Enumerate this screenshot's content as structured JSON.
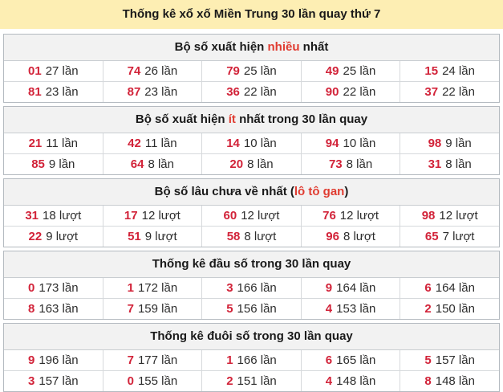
{
  "title": "Thống kê xổ xố Miền Trung 30 lần quay thứ 7",
  "colors": {
    "title_bar_bg": "#fdeeb3",
    "section_header_bg": "#f2f2f2",
    "accent_red": "#e03c31",
    "number_red": "#d22339",
    "border_gray": "#b4bac0",
    "text_dark": "#2d2d2d"
  },
  "sections": [
    {
      "header_parts": [
        {
          "text": "Bộ số xuất hiện ",
          "accent": false
        },
        {
          "text": "nhiều",
          "accent": true
        },
        {
          "text": " nhất",
          "accent": false
        }
      ],
      "rows": [
        [
          {
            "num": "01",
            "count": "27 lần"
          },
          {
            "num": "74",
            "count": "26 lần"
          },
          {
            "num": "79",
            "count": "25 lần"
          },
          {
            "num": "49",
            "count": "25 lần"
          },
          {
            "num": "15",
            "count": "24 lần"
          }
        ],
        [
          {
            "num": "81",
            "count": "23 lần"
          },
          {
            "num": "87",
            "count": "23 lần"
          },
          {
            "num": "36",
            "count": "22 lần"
          },
          {
            "num": "90",
            "count": "22 lần"
          },
          {
            "num": "37",
            "count": "22 lần"
          }
        ]
      ]
    },
    {
      "header_parts": [
        {
          "text": "Bộ số xuất hiện ",
          "accent": false
        },
        {
          "text": "ít",
          "accent": true
        },
        {
          "text": " nhất trong 30 lần quay",
          "accent": false
        }
      ],
      "rows": [
        [
          {
            "num": "21",
            "count": "11 lần"
          },
          {
            "num": "42",
            "count": "11 lần"
          },
          {
            "num": "14",
            "count": "10 lần"
          },
          {
            "num": "94",
            "count": "10 lần"
          },
          {
            "num": "98",
            "count": "9 lần"
          }
        ],
        [
          {
            "num": "85",
            "count": "9 lần"
          },
          {
            "num": "64",
            "count": "8 lần"
          },
          {
            "num": "20",
            "count": "8 lần"
          },
          {
            "num": "73",
            "count": "8 lần"
          },
          {
            "num": "31",
            "count": "8 lần"
          }
        ]
      ]
    },
    {
      "header_parts": [
        {
          "text": "Bộ số lâu chưa về nhất (",
          "accent": false
        },
        {
          "text": "lô tô gan",
          "accent": true
        },
        {
          "text": ")",
          "accent": false
        }
      ],
      "rows": [
        [
          {
            "num": "31",
            "count": "18 lượt"
          },
          {
            "num": "17",
            "count": "12 lượt"
          },
          {
            "num": "60",
            "count": "12 lượt"
          },
          {
            "num": "76",
            "count": "12 lượt"
          },
          {
            "num": "98",
            "count": "12 lượt"
          }
        ],
        [
          {
            "num": "22",
            "count": "9 lượt"
          },
          {
            "num": "51",
            "count": "9 lượt"
          },
          {
            "num": "58",
            "count": "8 lượt"
          },
          {
            "num": "96",
            "count": "8 lượt"
          },
          {
            "num": "65",
            "count": "7 lượt"
          }
        ]
      ]
    },
    {
      "header_parts": [
        {
          "text": "Thống kê đầu số trong 30 lần quay",
          "accent": false
        }
      ],
      "rows": [
        [
          {
            "num": "0",
            "count": "173 lần"
          },
          {
            "num": "1",
            "count": "172 lần"
          },
          {
            "num": "3",
            "count": "166 lần"
          },
          {
            "num": "9",
            "count": "164 lần"
          },
          {
            "num": "6",
            "count": "164 lần"
          }
        ],
        [
          {
            "num": "8",
            "count": "163 lần"
          },
          {
            "num": "7",
            "count": "159 lần"
          },
          {
            "num": "5",
            "count": "156 lần"
          },
          {
            "num": "4",
            "count": "153 lần"
          },
          {
            "num": "2",
            "count": "150 lần"
          }
        ]
      ]
    },
    {
      "header_parts": [
        {
          "text": "Thống kê đuôi số trong 30 lần quay",
          "accent": false
        }
      ],
      "rows": [
        [
          {
            "num": "9",
            "count": "196 lần"
          },
          {
            "num": "7",
            "count": "177 lần"
          },
          {
            "num": "1",
            "count": "166 lần"
          },
          {
            "num": "6",
            "count": "165 lần"
          },
          {
            "num": "5",
            "count": "157 lần"
          }
        ],
        [
          {
            "num": "3",
            "count": "157 lần"
          },
          {
            "num": "0",
            "count": "155 lần"
          },
          {
            "num": "2",
            "count": "151 lần"
          },
          {
            "num": "4",
            "count": "148 lần"
          },
          {
            "num": "8",
            "count": "148 lần"
          }
        ]
      ]
    }
  ]
}
